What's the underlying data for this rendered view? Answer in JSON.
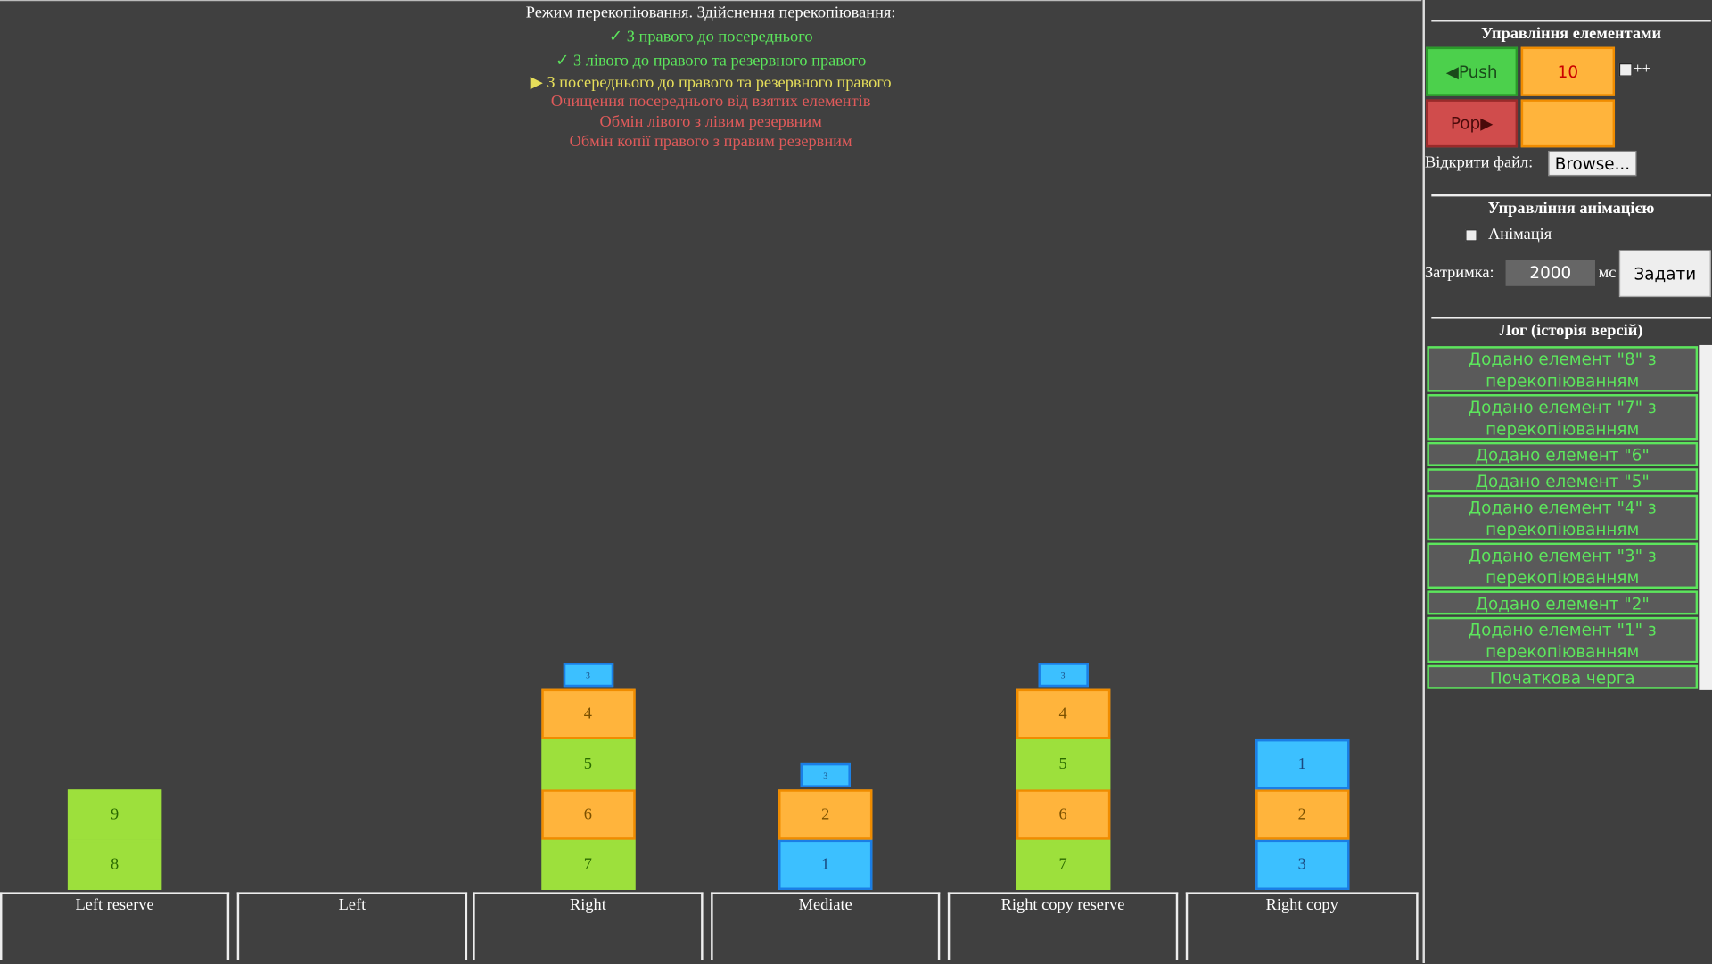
{
  "header": {
    "lines": [
      {
        "text": "Режим перекопіювання. Здійснення перекопіювання:",
        "color": "#ffffff"
      },
      {
        "text": "✓ З правого до посереднього",
        "color": "#5ce65c"
      },
      {
        "text": "✓ З лівого до правого та резервного правого",
        "color": "#5ce65c"
      },
      {
        "text": "▶ З посереднього до правого та резервного правого",
        "color": "#e6de5a"
      },
      {
        "text": "Очищення посереднього від взятих елементів",
        "color": "#e05a5a"
      },
      {
        "text": "Обмін лівого з лівим резервним",
        "color": "#e05a5a"
      },
      {
        "text": "Обмін копії правого з правим резервним",
        "color": "#e05a5a"
      }
    ]
  },
  "stacks": [
    {
      "label": "Left reserve",
      "items": [
        {
          "value": 8,
          "color": "#9de03c"
        },
        {
          "value": 9,
          "color": "#9de03c"
        }
      ]
    },
    {
      "label": "Left",
      "items": []
    },
    {
      "label": "Right",
      "items": [
        {
          "value": 7,
          "color": "#9de03c"
        },
        {
          "value": 6,
          "color": "#ffb43c"
        },
        {
          "value": 5,
          "color": "#9de03c"
        },
        {
          "value": 4,
          "color": "#ffb43c"
        },
        {
          "value": 3,
          "color": "#3cc0ff",
          "small": true
        }
      ]
    },
    {
      "label": "Mediate",
      "items": [
        {
          "value": 1,
          "color": "#3cc0ff"
        },
        {
          "value": 2,
          "color": "#ffb43c"
        },
        {
          "value": 3,
          "color": "#3cc0ff",
          "small": true
        }
      ]
    },
    {
      "label": "Right copy reserve",
      "items": [
        {
          "value": 7,
          "color": "#9de03c"
        },
        {
          "value": 6,
          "color": "#ffb43c"
        },
        {
          "value": 5,
          "color": "#9de03c"
        },
        {
          "value": 4,
          "color": "#ffb43c"
        },
        {
          "value": 3,
          "color": "#3cc0ff",
          "small": true
        }
      ]
    },
    {
      "label": "Right copy",
      "items": [
        {
          "value": 3,
          "color": "#3cc0ff"
        },
        {
          "value": 2,
          "color": "#ffb43c"
        },
        {
          "value": 1,
          "color": "#3cc0ff"
        }
      ]
    }
  ],
  "sidebar": {
    "elements_title": "Управління елементами",
    "push": "◀Push",
    "push_input": "10",
    "increment": "++",
    "pop": "Pop▶",
    "open_file": "Відкрити файл:",
    "browse": "Browse...",
    "animation_title": "Управління анімацією",
    "animation": "Анімація",
    "delay": "Затримка:",
    "delay_value": "2000",
    "ms": "мс",
    "set": "Задати",
    "log_title": "Лог (історія версій)",
    "log": [
      "Додано елемент \"8\" з перекопіюванням",
      "Додано елемент \"7\" з перекопіюванням",
      "Додано елемент \"6\"",
      "Додано елемент \"5\"",
      "Додано елемент \"4\" з перекопіюванням",
      "Додано елемент \"3\" з перекопіюванням",
      "Додано елемент \"2\"",
      "Додано елемент \"1\" з перекопіюванням",
      "Початкова черга"
    ]
  }
}
